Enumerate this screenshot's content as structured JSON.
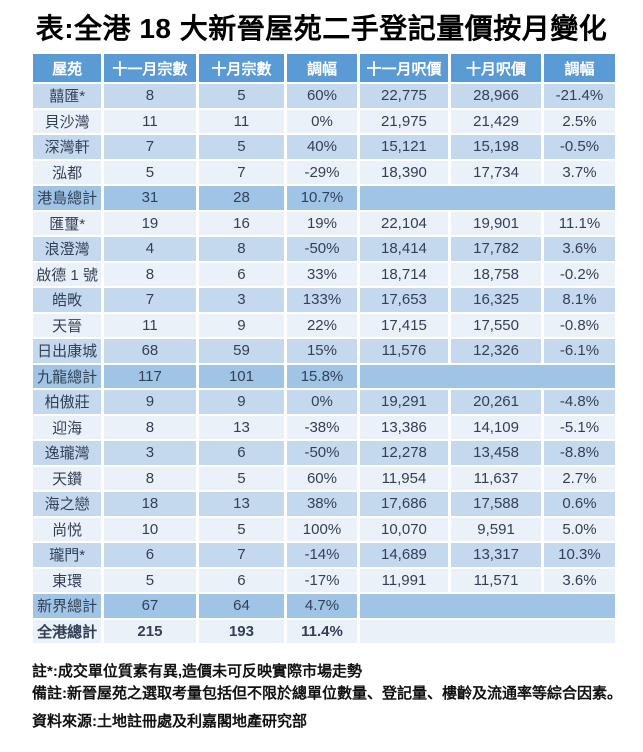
{
  "title": "表:全港 18 大新晉屋苑二手登記量價按月變化",
  "colors": {
    "header_bg": "#5b9bd5",
    "header_text": "#ffffff",
    "band_blue": "#c5d9ee",
    "band_light": "#eaf1f8",
    "subtotal_bg": "#9fc4e6",
    "cell_text": "#333f55",
    "title_text": "#000000"
  },
  "table": {
    "columns": [
      "屋苑",
      "十一月宗數",
      "十月宗數",
      "調幅",
      "十一月呎價",
      "十月呎價",
      "調幅"
    ],
    "rows": [
      {
        "type": "normal",
        "name": "囍匯*",
        "nov_count": "8",
        "oct_count": "5",
        "count_change": "60%",
        "nov_psf": "22,775",
        "oct_psf": "28,966",
        "psf_change": "-21.4%"
      },
      {
        "type": "normal",
        "name": "貝沙灣",
        "nov_count": "11",
        "oct_count": "11",
        "count_change": "0%",
        "nov_psf": "21,975",
        "oct_psf": "21,429",
        "psf_change": "2.5%"
      },
      {
        "type": "normal",
        "name": "深灣軒",
        "nov_count": "7",
        "oct_count": "5",
        "count_change": "40%",
        "nov_psf": "15,121",
        "oct_psf": "15,198",
        "psf_change": "-0.5%"
      },
      {
        "type": "normal",
        "name": "泓都",
        "nov_count": "5",
        "oct_count": "7",
        "count_change": "-29%",
        "nov_psf": "18,390",
        "oct_psf": "17,734",
        "psf_change": "3.7%"
      },
      {
        "type": "subtotal",
        "name": "港島總計",
        "nov_count": "31",
        "oct_count": "28",
        "count_change": "10.7%",
        "nov_psf": "",
        "oct_psf": "",
        "psf_change": ""
      },
      {
        "type": "normal",
        "name": "匯璽*",
        "nov_count": "19",
        "oct_count": "16",
        "count_change": "19%",
        "nov_psf": "22,104",
        "oct_psf": "19,901",
        "psf_change": "11.1%"
      },
      {
        "type": "normal",
        "name": "浪澄灣",
        "nov_count": "4",
        "oct_count": "8",
        "count_change": "-50%",
        "nov_psf": "18,414",
        "oct_psf": "17,782",
        "psf_change": "3.6%"
      },
      {
        "type": "normal",
        "name": "啟德 1 號",
        "nov_count": "8",
        "oct_count": "6",
        "count_change": "33%",
        "nov_psf": "18,714",
        "oct_psf": "18,758",
        "psf_change": "-0.2%"
      },
      {
        "type": "normal",
        "name": "皓畋",
        "nov_count": "7",
        "oct_count": "3",
        "count_change": "133%",
        "nov_psf": "17,653",
        "oct_psf": "16,325",
        "psf_change": "8.1%"
      },
      {
        "type": "normal",
        "name": "天晉",
        "nov_count": "11",
        "oct_count": "9",
        "count_change": "22%",
        "nov_psf": "17,415",
        "oct_psf": "17,550",
        "psf_change": "-0.8%"
      },
      {
        "type": "normal",
        "name": "日出康城",
        "nov_count": "68",
        "oct_count": "59",
        "count_change": "15%",
        "nov_psf": "11,576",
        "oct_psf": "12,326",
        "psf_change": "-6.1%"
      },
      {
        "type": "subtotal",
        "name": "九龍總計",
        "nov_count": "117",
        "oct_count": "101",
        "count_change": "15.8%",
        "nov_psf": "",
        "oct_psf": "",
        "psf_change": ""
      },
      {
        "type": "normal",
        "name": "柏傲莊",
        "nov_count": "9",
        "oct_count": "9",
        "count_change": "0%",
        "nov_psf": "19,291",
        "oct_psf": "20,261",
        "psf_change": "-4.8%"
      },
      {
        "type": "normal",
        "name": "迎海",
        "nov_count": "8",
        "oct_count": "13",
        "count_change": "-38%",
        "nov_psf": "13,386",
        "oct_psf": "14,109",
        "psf_change": "-5.1%"
      },
      {
        "type": "normal",
        "name": "逸瓏灣",
        "nov_count": "3",
        "oct_count": "6",
        "count_change": "-50%",
        "nov_psf": "12,278",
        "oct_psf": "13,458",
        "psf_change": "-8.8%"
      },
      {
        "type": "normal",
        "name": "天鑽",
        "nov_count": "8",
        "oct_count": "5",
        "count_change": "60%",
        "nov_psf": "11,954",
        "oct_psf": "11,637",
        "psf_change": "2.7%"
      },
      {
        "type": "normal",
        "name": "海之戀",
        "nov_count": "18",
        "oct_count": "13",
        "count_change": "38%",
        "nov_psf": "17,686",
        "oct_psf": "17,588",
        "psf_change": "0.6%"
      },
      {
        "type": "normal",
        "name": "尚悦",
        "nov_count": "10",
        "oct_count": "5",
        "count_change": "100%",
        "nov_psf": "10,070",
        "oct_psf": "9,591",
        "psf_change": "5.0%"
      },
      {
        "type": "normal",
        "name": "瓏門*",
        "nov_count": "6",
        "oct_count": "7",
        "count_change": "-14%",
        "nov_psf": "14,689",
        "oct_psf": "13,317",
        "psf_change": "10.3%"
      },
      {
        "type": "normal",
        "name": "東環",
        "nov_count": "5",
        "oct_count": "6",
        "count_change": "-17%",
        "nov_psf": "11,991",
        "oct_psf": "11,571",
        "psf_change": "3.6%"
      },
      {
        "type": "subtotal",
        "name": "新界總計",
        "nov_count": "67",
        "oct_count": "64",
        "count_change": "4.7%",
        "nov_psf": "",
        "oct_psf": "",
        "psf_change": ""
      },
      {
        "type": "grandtotal",
        "name": "全港總計",
        "nov_count": "215",
        "oct_count": "193",
        "count_change": "11.4%",
        "nov_psf": "",
        "oct_psf": "",
        "psf_change": ""
      }
    ]
  },
  "footnotes": [
    "註*:成交單位質素有異,造價未可反映實際市場走勢",
    "備註:新晉屋苑之選取考量包括但不限於總單位數量、登記量、樓齡及流通率等綜合因素。",
    "資料來源:土地註冊處及利嘉閣地產研究部"
  ]
}
